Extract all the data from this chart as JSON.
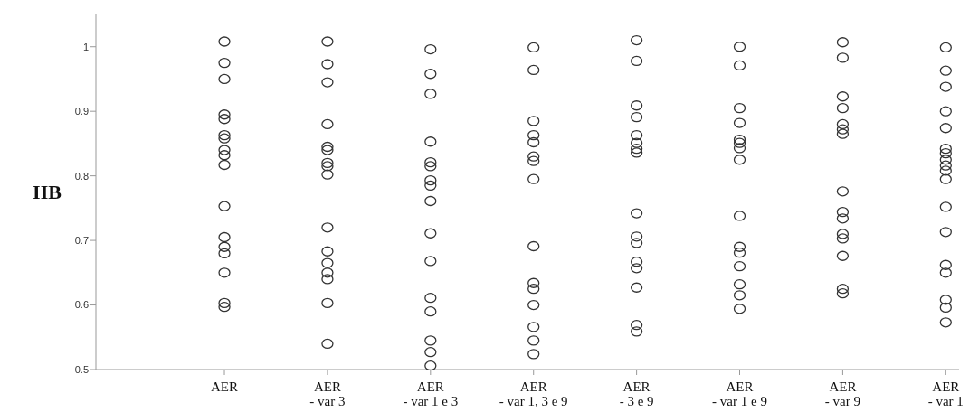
{
  "chart_data": {
    "type": "scatter",
    "ylabel": "IIB",
    "categories": [
      "AER",
      "AER\n- var 3",
      "AER\n- var 1 e 3",
      "AER\n- var 1, 3 e 9",
      "AER\n- 3 e 9",
      "AER\n- var 1 e 9",
      "AER\n- var 9",
      "AER\n- var 1"
    ],
    "ylim": [
      0.5,
      1.05
    ],
    "yticks": [
      0.5,
      0.6,
      0.7,
      0.8,
      0.9,
      1
    ],
    "grid": false,
    "legend": false,
    "marker": "circle",
    "series": [
      {
        "color": "#333333",
        "x": [
          "AER",
          "AER",
          "AER",
          "AER",
          "AER",
          "AER",
          "AER",
          "AER",
          "AER",
          "AER",
          "AER",
          "AER",
          "AER",
          "AER",
          "AER",
          "AER",
          "AER"
        ],
        "values": [
          1.008,
          0.975,
          0.95,
          0.895,
          0.888,
          0.863,
          0.858,
          0.84,
          0.832,
          0.817,
          0.753,
          0.705,
          0.69,
          0.68,
          0.65,
          0.603,
          0.597
        ]
      },
      {
        "color": "#333333",
        "x": [
          "AER\n- var 3",
          "AER\n- var 3",
          "AER\n- var 3",
          "AER\n- var 3",
          "AER\n- var 3",
          "AER\n- var 3",
          "AER\n- var 3",
          "AER\n- var 3",
          "AER\n- var 3",
          "AER\n- var 3",
          "AER\n- var 3",
          "AER\n- var 3",
          "AER\n- var 3",
          "AER\n- var 3",
          "AER\n- var 3",
          "AER\n- var 3"
        ],
        "values": [
          1.008,
          0.973,
          0.945,
          0.88,
          0.845,
          0.84,
          0.82,
          0.815,
          0.802,
          0.72,
          0.683,
          0.665,
          0.65,
          0.64,
          0.603,
          0.54
        ]
      },
      {
        "color": "#333333",
        "x": [
          "AER\n- var 1 e 3",
          "AER\n- var 1 e 3",
          "AER\n- var 1 e 3",
          "AER\n- var 1 e 3",
          "AER\n- var 1 e 3",
          "AER\n- var 1 e 3",
          "AER\n- var 1 e 3",
          "AER\n- var 1 e 3",
          "AER\n- var 1 e 3",
          "AER\n- var 1 e 3",
          "AER\n- var 1 e 3",
          "AER\n- var 1 e 3",
          "AER\n- var 1 e 3",
          "AER\n- var 1 e 3",
          "AER\n- var 1 e 3",
          "AER\n- var 1 e 3"
        ],
        "values": [
          0.996,
          0.958,
          0.927,
          0.853,
          0.821,
          0.815,
          0.793,
          0.785,
          0.761,
          0.711,
          0.668,
          0.611,
          0.59,
          0.545,
          0.527,
          0.506
        ]
      },
      {
        "color": "#333333",
        "x": [
          "AER\n- var 1, 3 e 9",
          "AER\n- var 1, 3 e 9",
          "AER\n- var 1, 3 e 9",
          "AER\n- var 1, 3 e 9",
          "AER\n- var 1, 3 e 9",
          "AER\n- var 1, 3 e 9",
          "AER\n- var 1, 3 e 9",
          "AER\n- var 1, 3 e 9",
          "AER\n- var 1, 3 e 9",
          "AER\n- var 1, 3 e 9",
          "AER\n- var 1, 3 e 9",
          "AER\n- var 1, 3 e 9",
          "AER\n- var 1, 3 e 9",
          "AER\n- var 1, 3 e 9",
          "AER\n- var 1, 3 e 9"
        ],
        "values": [
          0.999,
          0.964,
          0.885,
          0.863,
          0.852,
          0.83,
          0.823,
          0.795,
          0.691,
          0.634,
          0.625,
          0.6,
          0.566,
          0.545,
          0.524
        ]
      },
      {
        "color": "#333333",
        "x": [
          "AER\n- 3 e 9",
          "AER\n- 3 e 9",
          "AER\n- 3 e 9",
          "AER\n- 3 e 9",
          "AER\n- 3 e 9",
          "AER\n- 3 e 9",
          "AER\n- 3 e 9",
          "AER\n- 3 e 9",
          "AER\n- 3 e 9",
          "AER\n- 3 e 9",
          "AER\n- 3 e 9",
          "AER\n- 3 e 9",
          "AER\n- 3 e 9",
          "AER\n- 3 e 9",
          "AER\n- 3 e 9",
          "AER\n- 3 e 9"
        ],
        "values": [
          1.01,
          0.978,
          0.909,
          0.891,
          0.863,
          0.851,
          0.842,
          0.836,
          0.742,
          0.706,
          0.696,
          0.667,
          0.657,
          0.627,
          0.569,
          0.559
        ]
      },
      {
        "color": "#333333",
        "x": [
          "AER\n- var 1 e 9",
          "AER\n- var 1 e 9",
          "AER\n- var 1 e 9",
          "AER\n- var 1 e 9",
          "AER\n- var 1 e 9",
          "AER\n- var 1 e 9",
          "AER\n- var 1 e 9",
          "AER\n- var 1 e 9",
          "AER\n- var 1 e 9",
          "AER\n- var 1 e 9",
          "AER\n- var 1 e 9",
          "AER\n- var 1 e 9",
          "AER\n- var 1 e 9",
          "AER\n- var 1 e 9",
          "AER\n- var 1 e 9"
        ],
        "values": [
          1.0,
          0.971,
          0.905,
          0.882,
          0.856,
          0.851,
          0.843,
          0.825,
          0.738,
          0.69,
          0.681,
          0.66,
          0.632,
          0.615,
          0.594
        ]
      },
      {
        "color": "#333333",
        "x": [
          "AER\n- var 9",
          "AER\n- var 9",
          "AER\n- var 9",
          "AER\n- var 9",
          "AER\n- var 9",
          "AER\n- var 9",
          "AER\n- var 9",
          "AER\n- var 9",
          "AER\n- var 9",
          "AER\n- var 9",
          "AER\n- var 9",
          "AER\n- var 9",
          "AER\n- var 9",
          "AER\n- var 9",
          "AER\n- var 9"
        ],
        "values": [
          1.007,
          0.983,
          0.923,
          0.905,
          0.88,
          0.872,
          0.865,
          0.776,
          0.744,
          0.734,
          0.71,
          0.703,
          0.676,
          0.625,
          0.618
        ]
      },
      {
        "color": "#333333",
        "x": [
          "AER\n- var 1",
          "AER\n- var 1",
          "AER\n- var 1",
          "AER\n- var 1",
          "AER\n- var 1",
          "AER\n- var 1",
          "AER\n- var 1",
          "AER\n- var 1",
          "AER\n- var 1",
          "AER\n- var 1",
          "AER\n- var 1",
          "AER\n- var 1",
          "AER\n- var 1",
          "AER\n- var 1",
          "AER\n- var 1",
          "AER\n- var 1",
          "AER\n- var 1",
          "AER\n- var 1"
        ],
        "values": [
          0.999,
          0.963,
          0.938,
          0.9,
          0.874,
          0.842,
          0.835,
          0.825,
          0.816,
          0.808,
          0.795,
          0.752,
          0.713,
          0.662,
          0.65,
          0.608,
          0.596,
          0.573
        ]
      }
    ]
  }
}
